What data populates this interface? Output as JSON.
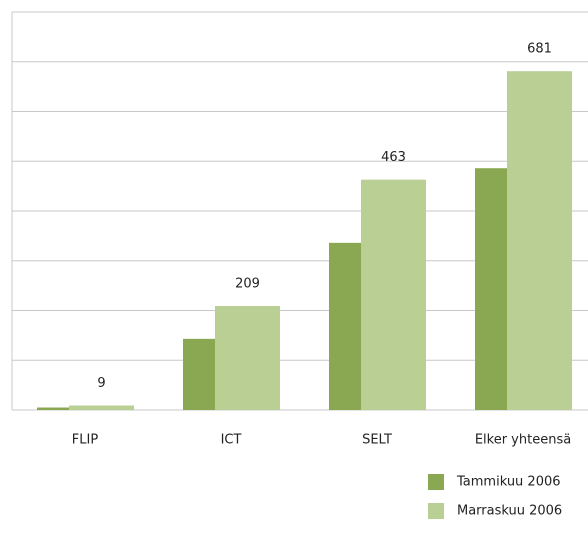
{
  "chart_data": {
    "type": "bar",
    "categories": [
      "FLIP",
      "ICT",
      "SELT",
      "Elker yhteensä"
    ],
    "series": [
      {
        "name": "Tammikuu 2006",
        "color": "#8aa852",
        "values": [
          5,
          143,
          336,
          486
        ]
      },
      {
        "name": "Marraskuu 2006",
        "color": "#b9cf94",
        "values": [
          9,
          209,
          463,
          681
        ]
      }
    ],
    "labeled_series": [
      1
    ],
    "ylim": [
      0,
      800
    ],
    "yticks": [
      0,
      100,
      200,
      300,
      400,
      500,
      600,
      700,
      800
    ],
    "grid": true,
    "legend": "bottom-right"
  }
}
